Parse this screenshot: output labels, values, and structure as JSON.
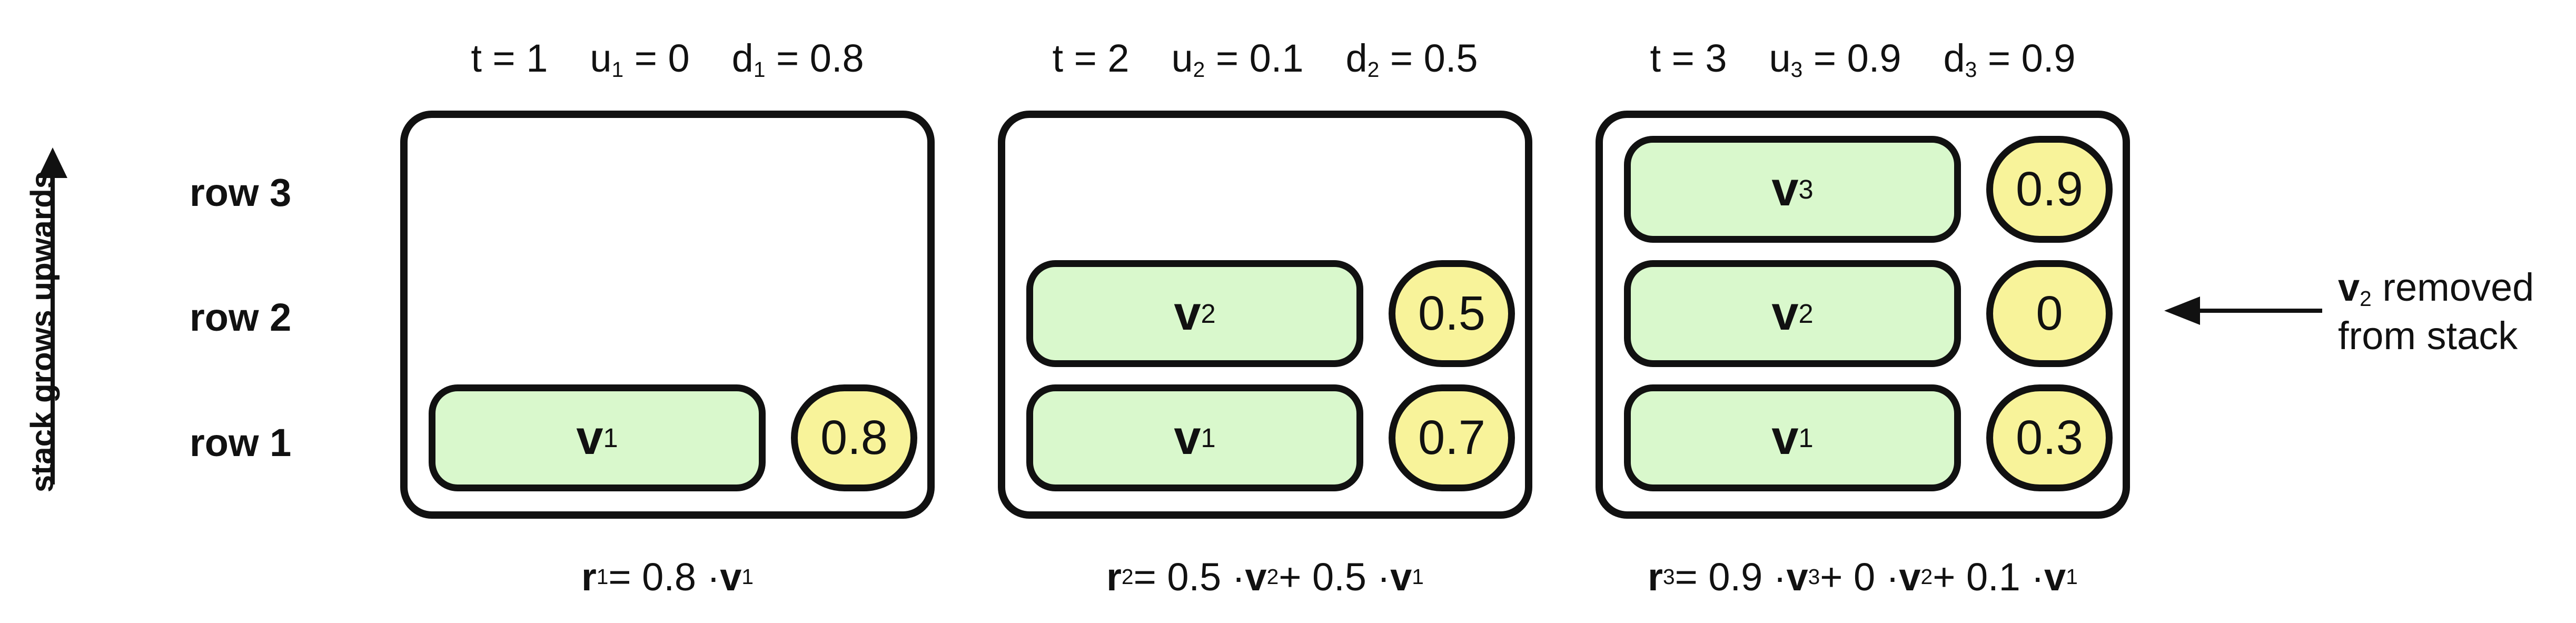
{
  "side": {
    "label": "stack grows upwards"
  },
  "rows": [
    "row 3",
    "row 2",
    "row 1"
  ],
  "panels": [
    {
      "header": {
        "t": "t = 1",
        "u_main": "u",
        "u_sub": "1",
        "u_val": " = 0",
        "d_main": "d",
        "d_sub": "1",
        "d_val": " = 0.8"
      },
      "vectors": [
        {
          "row": 1,
          "main": "v",
          "sub": "1",
          "strength": "0.8"
        }
      ],
      "formula": {
        "r_main": "r",
        "r_sub": "1",
        "rest": " = 0.8 · ",
        "v_main": "v",
        "v_sub": "1"
      }
    },
    {
      "header": {
        "t": "t = 2",
        "u_main": "u",
        "u_sub": "2",
        "u_val": " = 0.1",
        "d_main": "d",
        "d_sub": "2",
        "d_val": " = 0.5"
      },
      "vectors": [
        {
          "row": 2,
          "main": "v",
          "sub": "2",
          "strength": "0.5"
        },
        {
          "row": 1,
          "main": "v",
          "sub": "1",
          "strength": "0.7"
        }
      ],
      "formula": {
        "r_main": "r",
        "r_sub": "2",
        "a": " = 0.5 · ",
        "v2_main": "v",
        "v2_sub": "2",
        "b": " + 0.5 · ",
        "v1_main": "v",
        "v1_sub": "1"
      }
    },
    {
      "header": {
        "t": "t = 3",
        "u_main": "u",
        "u_sub": "3",
        "u_val": " = 0.9",
        "d_main": "d",
        "d_sub": "3",
        "d_val": " = 0.9"
      },
      "vectors": [
        {
          "row": 3,
          "main": "v",
          "sub": "3",
          "strength": "0.9"
        },
        {
          "row": 2,
          "main": "v",
          "sub": "2",
          "strength": "0"
        },
        {
          "row": 1,
          "main": "v",
          "sub": "1",
          "strength": "0.3"
        }
      ],
      "formula": {
        "r_main": "r",
        "r_sub": "3",
        "a": " = 0.9 · ",
        "v3_main": "v",
        "v3_sub": "3",
        "b": " + 0 · ",
        "v2_main": "v",
        "v2_sub": "2",
        "c": " + 0.1 · ",
        "v1_main": "v",
        "v1_sub": "1"
      }
    }
  ],
  "note": {
    "v_main": "v",
    "v_sub": "2",
    "line1_rest": " removed",
    "line2": "from stack"
  }
}
